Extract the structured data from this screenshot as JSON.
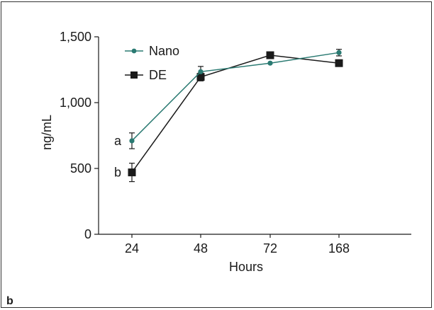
{
  "panel_label": "b",
  "chart_data": {
    "type": "line",
    "title": "",
    "xlabel": "Hours",
    "ylabel": "ng/mL",
    "categories": [
      "24",
      "48",
      "72",
      "168"
    ],
    "ylim": [
      0,
      1500
    ],
    "yticks": [
      0,
      500,
      1000,
      1500
    ],
    "ytick_labels": [
      "0",
      "500",
      "1,000",
      "1,500"
    ],
    "grid": false,
    "legend_position": "top-left",
    "series": [
      {
        "name": "Nano",
        "marker": "circle",
        "color": "#2a7a72",
        "values": [
          710,
          1235,
          1300,
          1380
        ],
        "errors": [
          60,
          40,
          0,
          25
        ]
      },
      {
        "name": "DE",
        "marker": "square",
        "color": "#1a1a1a",
        "values": [
          470,
          1195,
          1360,
          1300
        ],
        "errors": [
          70,
          30,
          0,
          0
        ]
      }
    ],
    "annotations": [
      {
        "text": "a",
        "series": 0,
        "category": "24"
      },
      {
        "text": "b",
        "series": 1,
        "category": "24"
      }
    ]
  }
}
